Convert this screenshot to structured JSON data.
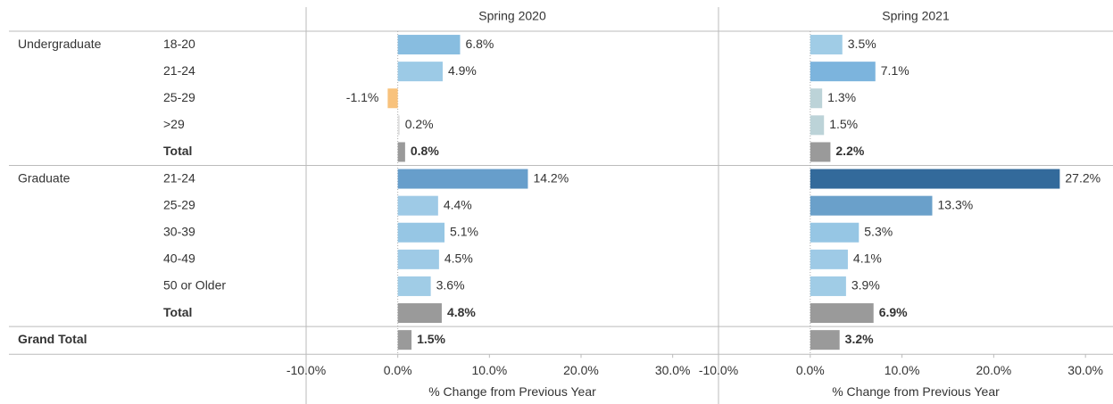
{
  "chart_data": {
    "type": "bar",
    "orientation": "horizontal",
    "row_groups": [
      "Undergraduate",
      null,
      null,
      null,
      null,
      "Graduate",
      null,
      null,
      null,
      null,
      null,
      "Grand Total"
    ],
    "categories": [
      "18-20",
      "21-24",
      "25-29",
      ">29",
      "Total",
      "21-24",
      "25-29",
      "30-39",
      "40-49",
      "50 or Older",
      "Total",
      null
    ],
    "bold": [
      false,
      false,
      false,
      false,
      true,
      false,
      false,
      false,
      false,
      false,
      true,
      true
    ],
    "x_label": "% Change from Previous Year",
    "series": [
      {
        "name": "Spring 2020",
        "xlim": [
          -10,
          35
        ],
        "values": [
          6.8,
          4.9,
          -1.1,
          0.2,
          0.8,
          14.2,
          4.4,
          5.1,
          4.5,
          3.6,
          4.8,
          1.5
        ],
        "value_labels": [
          "6.8%",
          "4.9%",
          "-1.1%",
          "0.2%",
          "0.8%",
          "14.2%",
          "4.4%",
          "5.1%",
          "4.5%",
          "3.6%",
          "4.8%",
          "1.5%"
        ],
        "colors": [
          "#88bde0",
          "#9ccae6",
          "#f8c27c",
          "#dedede",
          "#9a9a9a",
          "#679ecb",
          "#9ecae6",
          "#96c6e4",
          "#9ecae6",
          "#a0cce6",
          "#9a9a9a",
          "#9a9a9a"
        ]
      },
      {
        "name": "Spring 2021",
        "xlim": [
          -10,
          33
        ],
        "values": [
          3.5,
          7.1,
          1.3,
          1.5,
          2.2,
          27.2,
          13.3,
          5.3,
          4.1,
          3.9,
          6.9,
          3.2
        ],
        "value_labels": [
          "3.5%",
          "7.1%",
          "1.3%",
          "1.5%",
          "2.2%",
          "27.2%",
          "13.3%",
          "5.3%",
          "4.1%",
          "3.9%",
          "6.9%",
          "3.2%"
        ],
        "colors": [
          "#a0cce6",
          "#7cb4dd",
          "#bcd3d8",
          "#bcd3d8",
          "#9a9a9a",
          "#336a9b",
          "#6aa0ca",
          "#96c6e4",
          "#9ecae6",
          "#a0cce6",
          "#9a9a9a",
          "#9a9a9a"
        ]
      }
    ],
    "xticks": [
      {
        "value": -10,
        "label": "-10.0%"
      },
      {
        "value": 0,
        "label": "0.0%"
      },
      {
        "value": 10,
        "label": "10.0%"
      },
      {
        "value": 20,
        "label": "20.0%"
      },
      {
        "value": 30,
        "label": "30.0%"
      }
    ]
  }
}
